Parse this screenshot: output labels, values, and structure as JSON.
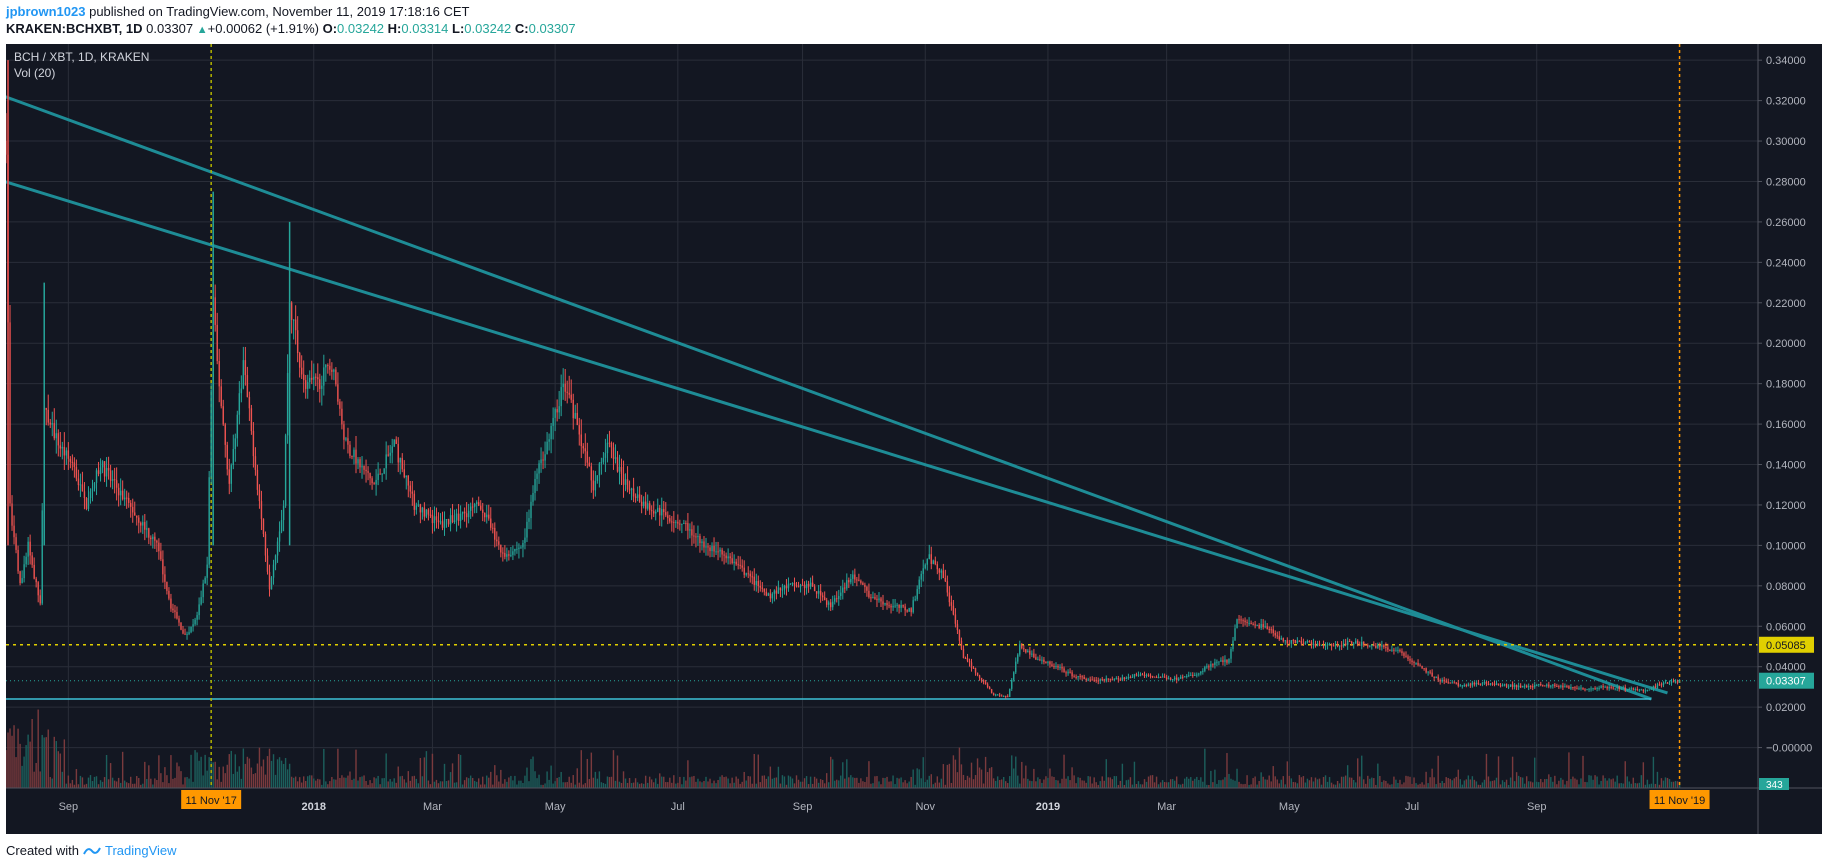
{
  "header": {
    "user": "jpbrown1023",
    "published": "published on TradingView.com, November 11, 2019 17:18:16 CET",
    "symbol": "KRAKEN:BCHXBT, 1D",
    "last": "0.03307",
    "change": "+0.00062 (+1.91%)",
    "o_label": "O:",
    "o": "0.03242",
    "h_label": "H:",
    "h": "0.03314",
    "l_label": "L:",
    "l": "0.03242",
    "c_label": "C:",
    "c": "0.03307"
  },
  "footer": {
    "created_with": "Created with",
    "brand": "TradingView"
  },
  "colors": {
    "background": "#131722",
    "grid": "#2a2e39",
    "up": "#26a69a",
    "down": "#ef5350",
    "trendline": "#1e8c96",
    "support": "#3dc2d8",
    "resistance": "#e0cf00",
    "marker": "#ff9800",
    "axis_text": "#b2b5be"
  },
  "chart_data": {
    "type": "candlestick",
    "title": "BCH / XBT, 1D, KRAKEN",
    "indicator_label": "Vol (20)",
    "x_range": [
      "2017-08-01",
      "2019-12-20"
    ],
    "ylim": [
      -0.02,
      0.348
    ],
    "y_ticks": [
      -0.0,
      0.02,
      0.04,
      0.06,
      0.08,
      0.1,
      0.12,
      0.14,
      0.16,
      0.18,
      0.2,
      0.22,
      0.24,
      0.26,
      0.28,
      0.3,
      0.32,
      0.34
    ],
    "y_tick_labels": [
      "−0.00000",
      "0.02000",
      "0.04000",
      "0.06000",
      "0.08000",
      "0.10000",
      "0.12000",
      "0.14000",
      "0.16000",
      "0.18000",
      "0.20000",
      "0.22000",
      "0.24000",
      "0.26000",
      "0.28000",
      "0.30000",
      "0.32000",
      "0.34000"
    ],
    "x_ticks": [
      {
        "date": "2017-09-01",
        "label": "Sep",
        "bold": false
      },
      {
        "date": "2018-01-01",
        "label": "2018",
        "bold": true
      },
      {
        "date": "2018-03-01",
        "label": "Mar",
        "bold": false
      },
      {
        "date": "2018-05-01",
        "label": "May",
        "bold": false
      },
      {
        "date": "2018-07-01",
        "label": "Jul",
        "bold": false
      },
      {
        "date": "2018-09-01",
        "label": "Sep",
        "bold": false
      },
      {
        "date": "2018-11-01",
        "label": "Nov",
        "bold": false
      },
      {
        "date": "2019-01-01",
        "label": "2019",
        "bold": true
      },
      {
        "date": "2019-03-01",
        "label": "Mar",
        "bold": false
      },
      {
        "date": "2019-05-01",
        "label": "May",
        "bold": false
      },
      {
        "date": "2019-07-01",
        "label": "Jul",
        "bold": false
      },
      {
        "date": "2019-09-01",
        "label": "Sep",
        "bold": false
      }
    ],
    "markers": [
      {
        "date": "2017-11-11",
        "label": "11 Nov '17"
      },
      {
        "date": "2019-11-11",
        "label": "11 Nov '19"
      }
    ],
    "price_anchors": [
      [
        "2017-08-01",
        0.3
      ],
      [
        "2017-08-03",
        0.12
      ],
      [
        "2017-08-08",
        0.08
      ],
      [
        "2017-08-12",
        0.1
      ],
      [
        "2017-08-18",
        0.07
      ],
      [
        "2017-08-20",
        0.17
      ],
      [
        "2017-08-27",
        0.15
      ],
      [
        "2017-09-03",
        0.14
      ],
      [
        "2017-09-10",
        0.12
      ],
      [
        "2017-09-17",
        0.14
      ],
      [
        "2017-09-24",
        0.13
      ],
      [
        "2017-10-01",
        0.12
      ],
      [
        "2017-10-08",
        0.11
      ],
      [
        "2017-10-15",
        0.1
      ],
      [
        "2017-10-22",
        0.07
      ],
      [
        "2017-10-29",
        0.055
      ],
      [
        "2017-11-04",
        0.065
      ],
      [
        "2017-11-09",
        0.09
      ],
      [
        "2017-11-12",
        0.22
      ],
      [
        "2017-11-14",
        0.19
      ],
      [
        "2017-11-20",
        0.13
      ],
      [
        "2017-11-27",
        0.19
      ],
      [
        "2017-12-04",
        0.13
      ],
      [
        "2017-12-10",
        0.08
      ],
      [
        "2017-12-17",
        0.12
      ],
      [
        "2017-12-20",
        0.22
      ],
      [
        "2017-12-27",
        0.18
      ],
      [
        "2018-01-03",
        0.18
      ],
      [
        "2018-01-10",
        0.19
      ],
      [
        "2018-01-17",
        0.15
      ],
      [
        "2018-01-24",
        0.14
      ],
      [
        "2018-01-31",
        0.13
      ],
      [
        "2018-02-10",
        0.15
      ],
      [
        "2018-02-20",
        0.12
      ],
      [
        "2018-03-05",
        0.11
      ],
      [
        "2018-03-15",
        0.115
      ],
      [
        "2018-03-25",
        0.12
      ],
      [
        "2018-04-05",
        0.095
      ],
      [
        "2018-04-15",
        0.1
      ],
      [
        "2018-04-22",
        0.135
      ],
      [
        "2018-04-30",
        0.16
      ],
      [
        "2018-05-05",
        0.18
      ],
      [
        "2018-05-12",
        0.16
      ],
      [
        "2018-05-20",
        0.13
      ],
      [
        "2018-05-27",
        0.15
      ],
      [
        "2018-06-05",
        0.13
      ],
      [
        "2018-06-15",
        0.12
      ],
      [
        "2018-06-25",
        0.115
      ],
      [
        "2018-07-05",
        0.11
      ],
      [
        "2018-07-15",
        0.1
      ],
      [
        "2018-07-25",
        0.095
      ],
      [
        "2018-08-05",
        0.085
      ],
      [
        "2018-08-15",
        0.075
      ],
      [
        "2018-08-25",
        0.08
      ],
      [
        "2018-09-05",
        0.08
      ],
      [
        "2018-09-15",
        0.07
      ],
      [
        "2018-09-25",
        0.085
      ],
      [
        "2018-10-05",
        0.075
      ],
      [
        "2018-10-15",
        0.07
      ],
      [
        "2018-10-25",
        0.068
      ],
      [
        "2018-11-02",
        0.095
      ],
      [
        "2018-11-10",
        0.085
      ],
      [
        "2018-11-15",
        0.065
      ],
      [
        "2018-11-20",
        0.045
      ],
      [
        "2018-11-28",
        0.035
      ],
      [
        "2018-12-05",
        0.026
      ],
      [
        "2018-12-12",
        0.025
      ],
      [
        "2018-12-18",
        0.05
      ],
      [
        "2018-12-25",
        0.045
      ],
      [
        "2019-01-05",
        0.04
      ],
      [
        "2019-01-15",
        0.035
      ],
      [
        "2019-01-25",
        0.033
      ],
      [
        "2019-02-05",
        0.034
      ],
      [
        "2019-02-15",
        0.036
      ],
      [
        "2019-02-25",
        0.035
      ],
      [
        "2019-03-05",
        0.034
      ],
      [
        "2019-03-15",
        0.036
      ],
      [
        "2019-03-25",
        0.042
      ],
      [
        "2019-04-01",
        0.043
      ],
      [
        "2019-04-05",
        0.063
      ],
      [
        "2019-04-12",
        0.06
      ],
      [
        "2019-04-20",
        0.06
      ],
      [
        "2019-04-28",
        0.052
      ],
      [
        "2019-05-10",
        0.052
      ],
      [
        "2019-05-20",
        0.05
      ],
      [
        "2019-06-01",
        0.052
      ],
      [
        "2019-06-15",
        0.05
      ],
      [
        "2019-06-25",
        0.047
      ],
      [
        "2019-07-05",
        0.04
      ],
      [
        "2019-07-15",
        0.033
      ],
      [
        "2019-07-25",
        0.031
      ],
      [
        "2019-08-05",
        0.032
      ],
      [
        "2019-08-15",
        0.031
      ],
      [
        "2019-08-25",
        0.03
      ],
      [
        "2019-09-05",
        0.031
      ],
      [
        "2019-09-15",
        0.03
      ],
      [
        "2019-09-25",
        0.029
      ],
      [
        "2019-10-05",
        0.03
      ],
      [
        "2019-10-15",
        0.029
      ],
      [
        "2019-10-25",
        0.028
      ],
      [
        "2019-11-01",
        0.031
      ],
      [
        "2019-11-11",
        0.033
      ]
    ],
    "annotations": {
      "trendlines": [
        {
          "from": [
            "2017-07-15",
            0.328
          ],
          "to": [
            "2019-10-28",
            0.024
          ]
        },
        {
          "from": [
            "2017-07-15",
            0.285
          ],
          "to": [
            "2019-11-05",
            0.027
          ]
        }
      ],
      "support": {
        "value": 0.024,
        "from": "2017-07-15",
        "to": "2019-10-28"
      },
      "resistance": {
        "value": 0.05085,
        "label": "0.05085"
      },
      "last_price": {
        "value": 0.03307,
        "label": "0.03307"
      },
      "volume_badge": "343"
    }
  }
}
